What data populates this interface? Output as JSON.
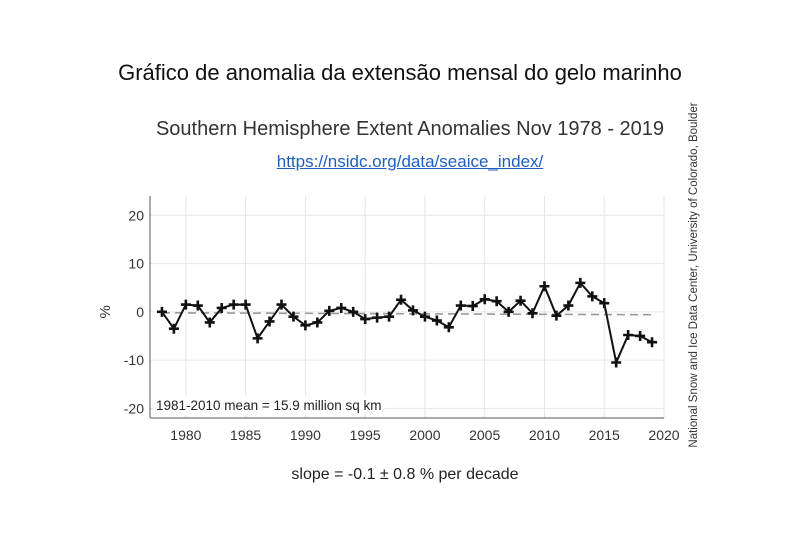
{
  "page": {
    "outer_title": "Gráfico de anomalia da extensão mensal do gelo marinho",
    "source_link": "https://nsidc.org/data/seaice_index/",
    "credit": "National Snow and Ice Data Center, University of Colorado, Boulder",
    "slope": "slope = -0.1 ± 0.8 % per decade"
  },
  "colors": {
    "line": "#111111",
    "mean_dash": "#999999",
    "grid": "#e6e6e6",
    "link": "#1f5fbf"
  },
  "chart_data": {
    "type": "line",
    "title": "Southern Hemisphere Extent Anomalies Nov 1978 - 2019",
    "xlabel": "",
    "ylabel": "%",
    "xlim": [
      1977,
      2020
    ],
    "ylim": [
      -22,
      24
    ],
    "x_ticks": [
      1980,
      1985,
      1990,
      1995,
      2000,
      2005,
      2010,
      2015,
      2020
    ],
    "y_ticks": [
      -20,
      -10,
      0,
      10,
      20
    ],
    "grid": true,
    "annotation": "1981-2010 mean = 15.9 million sq km",
    "series": [
      {
        "x": [
          1978,
          1979,
          1980,
          1981,
          1982,
          1983,
          1984,
          1985,
          1986,
          1987,
          1988,
          1989,
          1990,
          1991,
          1992,
          1993,
          1994,
          1995,
          1996,
          1997,
          1998,
          1999,
          2000,
          2001,
          2002,
          2003,
          2004,
          2005,
          2006,
          2007,
          2008,
          2009,
          2010,
          2011,
          2012,
          2013,
          2014,
          2015,
          2016,
          2017,
          2018,
          2019
        ],
        "values": [
          0.0,
          -3.5,
          1.5,
          1.3,
          -2.2,
          0.8,
          1.5,
          1.5,
          -5.5,
          -2.0,
          1.5,
          -1.0,
          -2.8,
          -2.2,
          0.2,
          0.8,
          0.0,
          -1.5,
          -1.2,
          -1.0,
          2.5,
          0.3,
          -1.0,
          -1.8,
          -3.2,
          1.3,
          1.2,
          2.6,
          2.2,
          0.0,
          2.3,
          -0.3,
          5.3,
          -0.8,
          1.3,
          6.0,
          3.2,
          1.8,
          -10.5,
          -4.8,
          -5.0,
          -6.3
        ]
      }
    ],
    "trend_line": {
      "x": [
        1978,
        2019
      ],
      "y": [
        -0.2,
        -0.6
      ]
    }
  }
}
